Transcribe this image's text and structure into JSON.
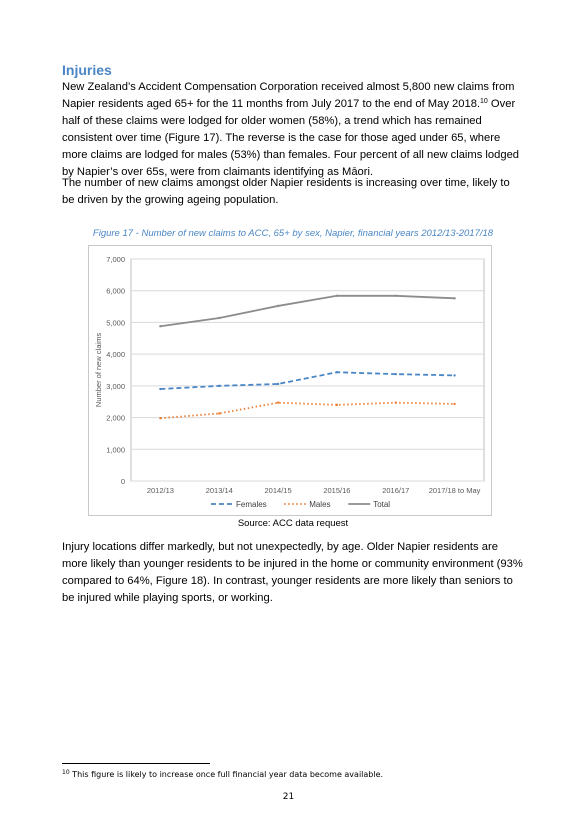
{
  "section": {
    "heading": "Injuries",
    "paragraph1_a": "New Zealand’s Accident Compensation Corporation received almost 5,800 new claims from Napier residents aged 65+ for the 11 months from July 2017 to the end of May 2018.",
    "paragraph1_ref": "10",
    "paragraph1_b": " Over half of these claims were lodged for older women (58%), a trend which has remained consistent over time (Figure 17). The reverse is the case for those aged under 65, where more claims are lodged for males (53%) than females. Four percent of all new claims lodged by Napier’s over 65s, were from claimants identifying as Māori.",
    "paragraph2": "The number of new claims amongst older Napier residents is increasing over time, likely to be driven by the growing ageing population.",
    "paragraph3": "Injury locations differ markedly, but not unexpectedly, by age. Older Napier residents are more likely than younger residents to be injured in the home or community environment (93% compared to 64%, Figure 18). In contrast, younger residents are more likely than seniors to be injured while playing sports, or working."
  },
  "figure": {
    "caption": "Figure 17 - Number of new claims to ACC, 65+ by sex, Napier, financial years 2012/13-2017/18",
    "source": "Source: ACC data request"
  },
  "chart_data": {
    "type": "line",
    "title": "",
    "xlabel": "",
    "ylabel": "Number of new claims",
    "categories": [
      "2012/13",
      "2013/14",
      "2014/15",
      "2015/16",
      "2016/17",
      "2017/18 to May"
    ],
    "ylim": [
      0,
      7000
    ],
    "yticks": [
      "0",
      "1,000",
      "2,000",
      "3,000",
      "4,000",
      "5,000",
      "6,000",
      "7,000"
    ],
    "grid": "horizontal",
    "legend_position": "bottom",
    "series": [
      {
        "name": "Females",
        "values": [
          2900,
          3000,
          3060,
          3430,
          3370,
          3330
        ],
        "color": "#4a86c5",
        "dash": "dashed"
      },
      {
        "name": "Males",
        "values": [
          1980,
          2130,
          2470,
          2400,
          2470,
          2430
        ],
        "color": "#ed7d31",
        "dash": "dotted"
      },
      {
        "name": "Total",
        "values": [
          4880,
          5140,
          5520,
          5840,
          5840,
          5760
        ],
        "color": "#8c8c8c",
        "dash": "solid"
      }
    ]
  },
  "footnote": {
    "number": "10",
    "text": " This figure is likely to increase once full financial year data become available."
  },
  "page_number": "21"
}
